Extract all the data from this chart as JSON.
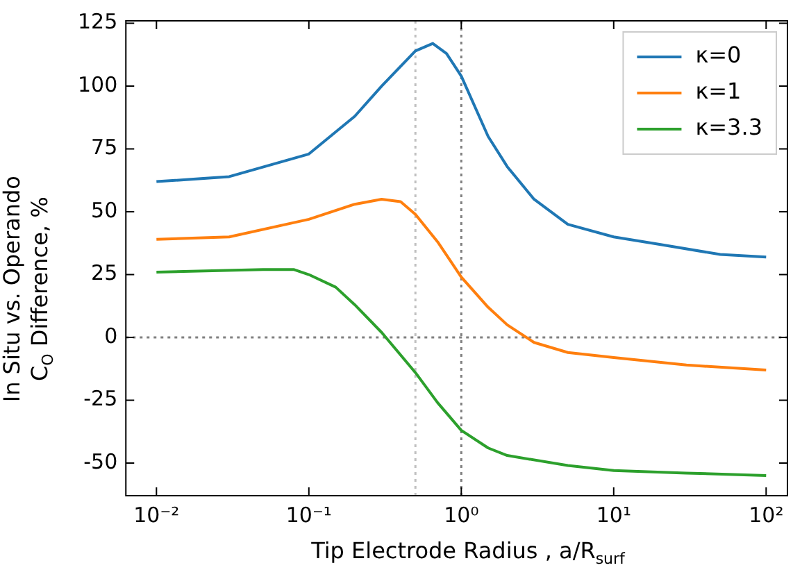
{
  "chart_data": {
    "type": "line",
    "xlabel": "Tip Electrode Radius , a/R$_{surf}$",
    "ylabel": "In Situ vs. Operando\nC$_{O}$ Difference, %",
    "log": "x",
    "xlim": [
      0.0063,
      138
    ],
    "ylim": [
      -63,
      126
    ],
    "xticks": [
      {
        "value": 0.01,
        "label": "10⁻²"
      },
      {
        "value": 0.1,
        "label": "10⁻¹"
      },
      {
        "value": 1,
        "label": "10⁰"
      },
      {
        "value": 10,
        "label": "10¹"
      },
      {
        "value": 100,
        "label": "10²"
      }
    ],
    "yticks": [
      -50,
      -25,
      0,
      25,
      50,
      75,
      100,
      125
    ],
    "grid": false,
    "legend": "top right",
    "marker": "none",
    "line_style": "solid",
    "ref_lines": [
      {
        "axis": "x",
        "value": 0.5,
        "color": "#c0c0c0",
        "line_style": "dotted"
      },
      {
        "axis": "x",
        "value": 1,
        "color": "#808080",
        "line_style": "dotted"
      },
      {
        "axis": "y",
        "value": 0,
        "color": "#808080",
        "line_style": "dotted"
      }
    ],
    "series": [
      {
        "name": "κ=0",
        "color": "#1f77b4",
        "x": [
          0.01,
          0.03,
          0.1,
          0.2,
          0.3,
          0.5,
          0.65,
          0.8,
          1,
          1.5,
          2,
          3,
          5,
          10,
          20,
          50,
          100
        ],
        "values": [
          62,
          64,
          73,
          88,
          100,
          114,
          117,
          113,
          104,
          80,
          68,
          55,
          45,
          40,
          37,
          33,
          32
        ]
      },
      {
        "name": "κ=1",
        "color": "#ff7f0e",
        "x": [
          0.01,
          0.03,
          0.1,
          0.2,
          0.3,
          0.4,
          0.5,
          0.7,
          1,
          1.5,
          2,
          3,
          5,
          10,
          30,
          100
        ],
        "values": [
          39,
          40,
          47,
          53,
          55,
          54,
          49,
          38,
          24,
          12,
          5,
          -2,
          -6,
          -8,
          -11,
          -13
        ]
      },
      {
        "name": "κ=3.3",
        "color": "#2ca02c",
        "x": [
          0.01,
          0.05,
          0.08,
          0.1,
          0.15,
          0.2,
          0.3,
          0.5,
          0.7,
          1,
          1.5,
          2,
          5,
          10,
          30,
          100
        ],
        "values": [
          26,
          27,
          27,
          25,
          20,
          13,
          2,
          -14,
          -26,
          -37,
          -44,
          -47,
          -51,
          -53,
          -54,
          -55
        ]
      }
    ]
  }
}
